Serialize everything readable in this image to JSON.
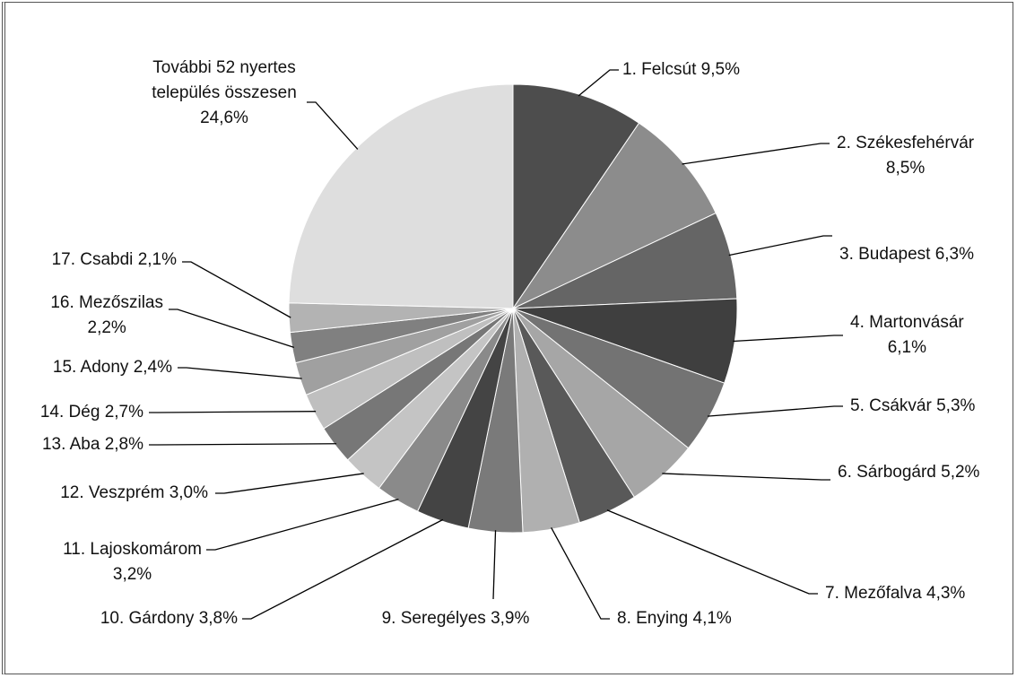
{
  "chart_data": {
    "type": "pie",
    "categories": [
      "1. Felcsút",
      "2. Székesfehérvár",
      "3. Budapest",
      "4. Martonvásár",
      "5. Csákvár",
      "6. Sárbogárd",
      "7. Mezőfalva",
      "8. Enying",
      "9. Seregélyes",
      "10. Gárdony",
      "11. Lajoskomárom",
      "12. Veszprém",
      "13. Aba",
      "14. Dég",
      "15. Adony",
      "16. Mezőszilas",
      "17. Csabdi",
      "További 52 nyertes település összesen"
    ],
    "values": [
      9.5,
      8.5,
      6.3,
      6.1,
      5.3,
      5.2,
      4.3,
      4.1,
      3.9,
      3.8,
      3.2,
      3.0,
      2.8,
      2.7,
      2.4,
      2.2,
      2.1,
      24.6
    ],
    "value_labels": [
      "9,5%",
      "8,5%",
      "6,3%",
      "6,1%",
      "5,3%",
      "5,2%",
      "4,3%",
      "4,1%",
      "3,9%",
      "3,8%",
      "3,2%",
      "3,0%",
      "2,8%",
      "2,7%",
      "2,4%",
      "2,2%",
      "2,1%",
      "24,6%"
    ],
    "colors": [
      "#4d4d4d",
      "#8c8c8c",
      "#656565",
      "#3f3f3f",
      "#737373",
      "#a6a6a6",
      "#595959",
      "#b0b0b0",
      "#7a7a7a",
      "#444444",
      "#8a8a8a",
      "#c4c4c4",
      "#777777",
      "#bfbfbf",
      "#a0a0a0",
      "#808080",
      "#b3b3b3",
      "#dedede"
    ]
  }
}
